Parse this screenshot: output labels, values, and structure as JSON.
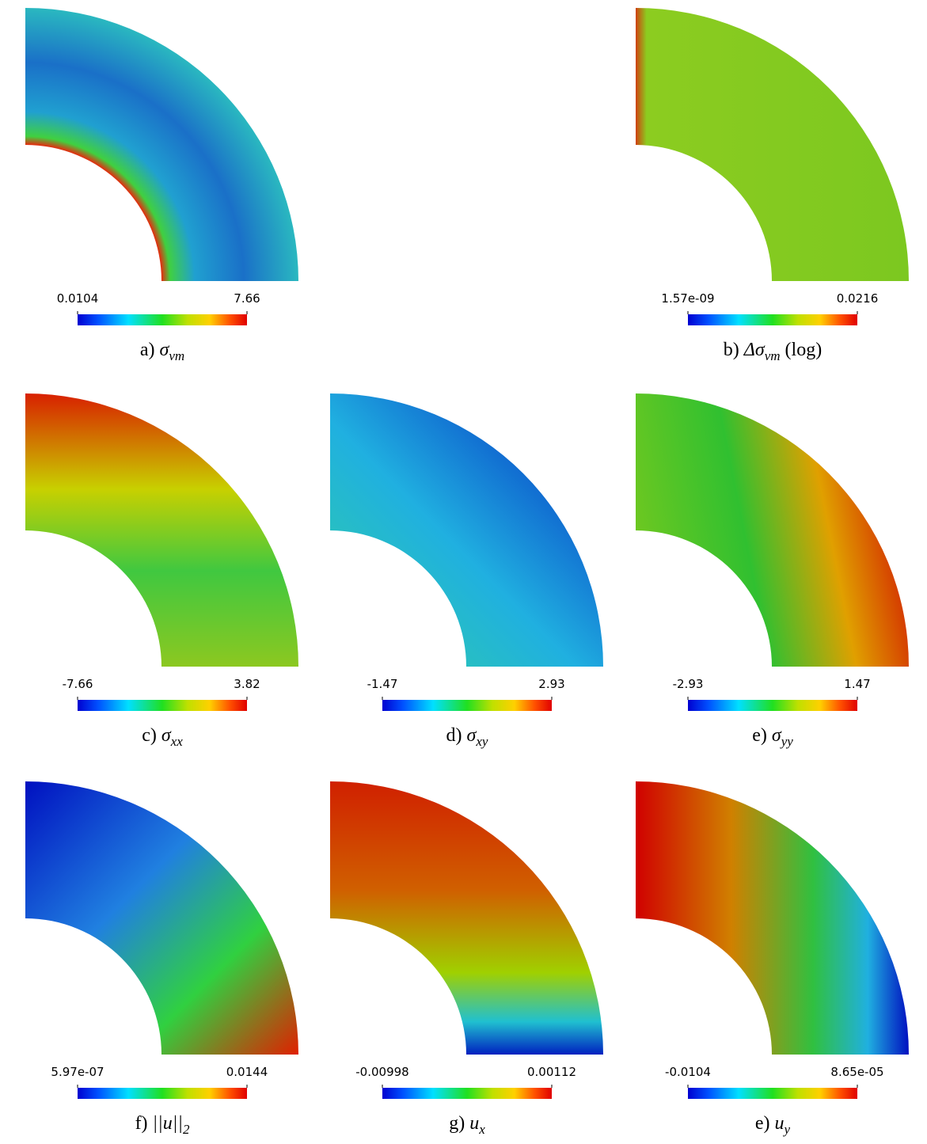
{
  "panels": [
    {
      "letter": "a)",
      "symbol": "σ",
      "subscript": "vm",
      "min": "0.0104",
      "max": "7.66"
    },
    {
      "letter": "b)",
      "symbol": "Δσ",
      "subscript": "vm",
      "suffix": "(log)",
      "min": "1.57e-09",
      "max": "0.0216"
    },
    {
      "letter": "c)",
      "symbol": "σ",
      "subscript": "xx",
      "min": "-7.66",
      "max": "3.82"
    },
    {
      "letter": "d)",
      "symbol": "σ",
      "subscript": "xy",
      "min": "-1.47",
      "max": "2.93"
    },
    {
      "letter": "e)",
      "symbol": "σ",
      "subscript": "yy",
      "min": "-2.93",
      "max": "1.47"
    },
    {
      "letter": "f)",
      "symbol": "||u||",
      "subscript": "2",
      "min": "5.97e-07",
      "max": "0.0144"
    },
    {
      "letter": "g)",
      "symbol": "u",
      "subscript": "x",
      "min": "-0.00998",
      "max": "0.00112"
    },
    {
      "letter": "e)",
      "symbol": "u",
      "subscript": "y",
      "min": "-0.0104",
      "max": "8.65e-05"
    }
  ]
}
